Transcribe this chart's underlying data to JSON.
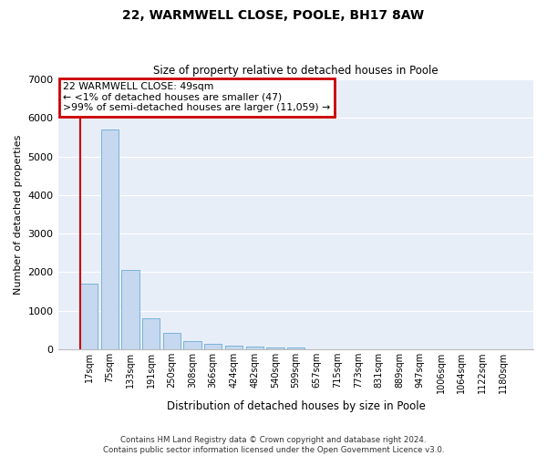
{
  "title_line1": "22, WARMWELL CLOSE, POOLE, BH17 8AW",
  "title_line2": "Size of property relative to detached houses in Poole",
  "xlabel": "Distribution of detached houses by size in Poole",
  "ylabel": "Number of detached properties",
  "annotation_title": "22 WARMWELL CLOSE: 49sqm",
  "annotation_line2": "← <1% of detached houses are smaller (47)",
  "annotation_line3": ">99% of semi-detached houses are larger (11,059) →",
  "footer_line1": "Contains HM Land Registry data © Crown copyright and database right 2024.",
  "footer_line2": "Contains public sector information licensed under the Open Government Licence v3.0.",
  "bar_color": "#c5d8ef",
  "bar_edge_color": "#6aaad4",
  "annotation_box_color": "#cc0000",
  "background_color": "#e8eef8",
  "grid_color": "#ffffff",
  "categories": [
    "17sqm",
    "75sqm",
    "133sqm",
    "191sqm",
    "250sqm",
    "308sqm",
    "366sqm",
    "424sqm",
    "482sqm",
    "540sqm",
    "599sqm",
    "657sqm",
    "715sqm",
    "773sqm",
    "831sqm",
    "889sqm",
    "947sqm",
    "1006sqm",
    "1064sqm",
    "1122sqm",
    "1180sqm"
  ],
  "values": [
    1700,
    5700,
    2050,
    800,
    420,
    220,
    130,
    100,
    80,
    50,
    40,
    0,
    0,
    0,
    0,
    0,
    0,
    0,
    0,
    0,
    0
  ],
  "ylim": [
    0,
    7000
  ],
  "yticks": [
    0,
    1000,
    2000,
    3000,
    4000,
    5000,
    6000,
    7000
  ],
  "marker_color": "#cc0000"
}
